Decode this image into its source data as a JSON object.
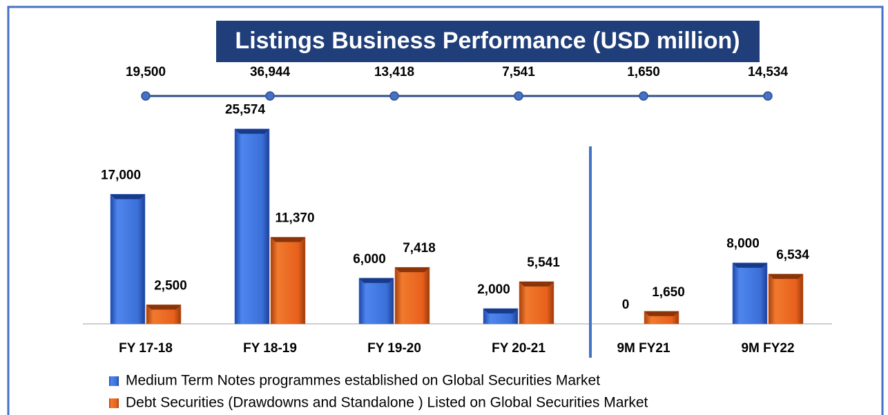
{
  "chart_data": {
    "type": "bar",
    "title": "Listings Business Performance (USD million)",
    "categories": [
      "FY 17-18",
      "FY 18-19",
      "FY 19-20",
      "FY 20-21",
      "9M FY21",
      "9M FY22"
    ],
    "series": [
      {
        "name": "Medium Term Notes programmes established on Global Securities Market",
        "color": "#3a6fd8",
        "values": [
          17000,
          25574,
          6000,
          2000,
          0,
          8000
        ],
        "value_labels": [
          "17,000",
          "25,574",
          "6,000",
          "2,000",
          "0",
          "8,000"
        ]
      },
      {
        "name": "Debt Securities (Drawdowns and Standalone ) Listed on Global Securities Market",
        "color": "#e8601c",
        "values": [
          2500,
          11370,
          7418,
          5541,
          1650,
          6534
        ],
        "value_labels": [
          "2,500",
          "11,370",
          "7,418",
          "5,541",
          "1,650",
          "6,534"
        ]
      }
    ],
    "totals": {
      "values": [
        19500,
        36944,
        13418,
        7541,
        1650,
        14534
      ],
      "value_labels": [
        "19,500",
        "36,944",
        "13,418",
        "7,541",
        "1,650",
        "14,534"
      ]
    },
    "ylim": [
      0,
      26000
    ],
    "legend": "bottom"
  }
}
